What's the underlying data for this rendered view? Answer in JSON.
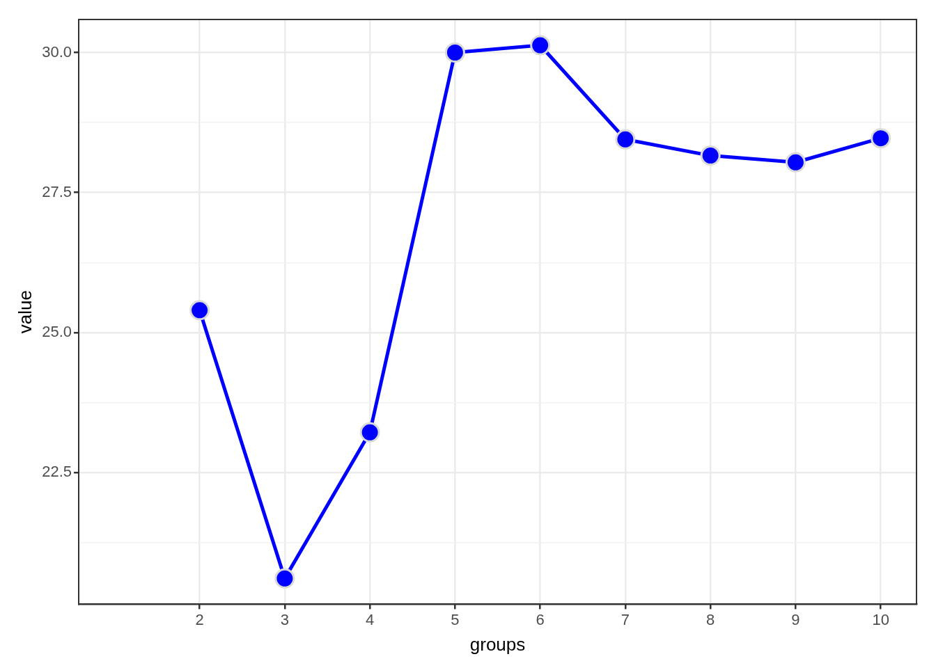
{
  "chart_data": {
    "type": "line",
    "xlabel": "groups",
    "ylabel": "value",
    "x": [
      2,
      3,
      4,
      5,
      6,
      7,
      8,
      9,
      10
    ],
    "series": [
      {
        "color": "#0000ff",
        "values": [
          25.4,
          20.61,
          23.22,
          30.0,
          30.13,
          28.45,
          28.16,
          28.04,
          28.47
        ]
      }
    ],
    "xlim": [
      0.58,
      10.42
    ],
    "ylim": [
      20.15,
      30.59
    ],
    "xticks": [
      2,
      3,
      4,
      5,
      6,
      7,
      8,
      9,
      10
    ],
    "yticks": [
      {
        "value": 21.25,
        "label": null
      },
      {
        "value": 22.5,
        "label": "22.5"
      },
      {
        "value": 23.75,
        "label": null
      },
      {
        "value": 25,
        "label": "25.0"
      },
      {
        "value": 26.25,
        "label": null
      },
      {
        "value": 27.5,
        "label": "27.5"
      },
      {
        "value": 28.75,
        "label": null
      },
      {
        "value": 30,
        "label": "30.0"
      }
    ],
    "grid": true,
    "legend": false,
    "marker": "circle",
    "line_style": "solid"
  }
}
